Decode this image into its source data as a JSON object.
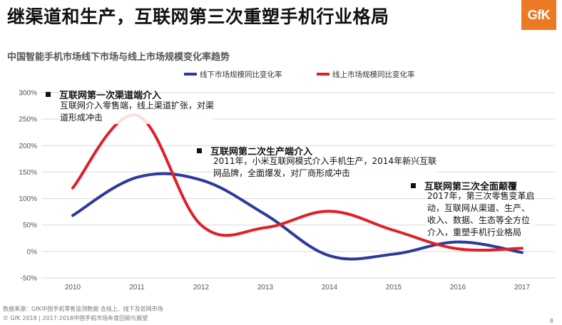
{
  "header": {
    "title": "继渠道和生产，互联网第三次重塑手机行业格局",
    "logo_text": "GfK",
    "subtitle": "中国智能手机市场线下市场与线上市场规模变化率趋势"
  },
  "colors": {
    "blue": "#2b3a9c",
    "red": "#e02027",
    "logo": "#ec7a25"
  },
  "chart_data": {
    "type": "line",
    "categories": [
      "2010",
      "2011",
      "2012",
      "2013",
      "2014",
      "2015",
      "2016",
      "2017"
    ],
    "series": [
      {
        "name": "线下市场规模同比变化率",
        "values": [
          68,
          140,
          135,
          70,
          -8,
          -5,
          18,
          -2
        ]
      },
      {
        "name": "线上市场规模同比变化率",
        "values": [
          120,
          257,
          50,
          45,
          76,
          40,
          5,
          6
        ]
      }
    ],
    "yticks": [
      "300%",
      "250%",
      "200%",
      "150%",
      "100%",
      "50%",
      "0%",
      "-50%"
    ],
    "ylim": [
      -50,
      300
    ],
    "legend": "top-center"
  },
  "annotations": [
    {
      "title": "互联网第一次渠道端介入",
      "text1": "互联网介入零售端，线上渠道扩张，对渠",
      "text2": "道形成冲击"
    },
    {
      "title": "互联网第二次生产端介入",
      "text1": "2011年，小米互联网模式介入手机生产，2014年新兴互联",
      "text2": "网品牌，全面爆发，对厂商形成冲击"
    },
    {
      "title": "互联网第三次全面颠覆",
      "text1": "2017年，第三次零售变革启",
      "text2": "动，互联网从渠道、生产、",
      "text3": "收入、数据、生态等全方位",
      "text4": "介入，重塑手机行业格局"
    }
  ],
  "footer": {
    "source": "数据来源：GfK中国手机零售监测数据 含线上、线下及官网市场",
    "copyright": "© GfK 2018 | 2017-2018中国手机市场年度回顾与展望",
    "page": "8"
  }
}
